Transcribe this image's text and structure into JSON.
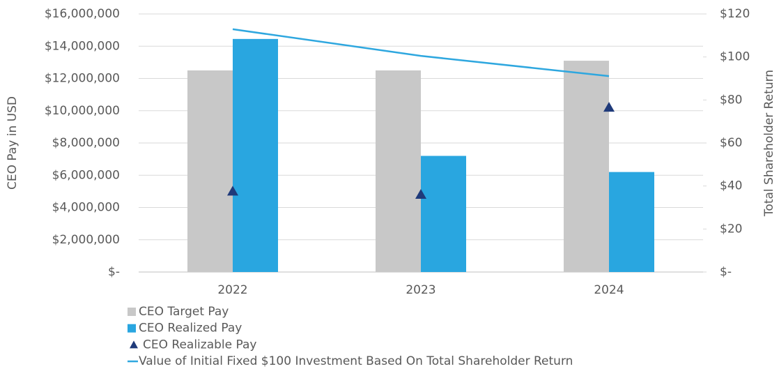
{
  "chart_data": {
    "type": "bar",
    "y_label": "CEO Pay in USD",
    "y2_label": "Total Shareholder Return",
    "categories": [
      "2022",
      "2023",
      "2024"
    ],
    "series": [
      {
        "name": "CEO Target Pay",
        "type": "bar",
        "color": "#c8c8c8",
        "values": [
          12500000,
          12500000,
          13100000
        ]
      },
      {
        "name": "CEO Realized Pay",
        "type": "bar",
        "color": "#29a6e0",
        "values": [
          14450000,
          7200000,
          6200000
        ]
      },
      {
        "name": "CEO Realizable Pay",
        "type": "scatter",
        "color": "#1f3a7a",
        "values": [
          5000000,
          4800000,
          10200000
        ]
      },
      {
        "name": "Value of Initial Fixed $100 Investment Based On Total Shareholder Return",
        "type": "line",
        "color": "#2ea7df",
        "axis": "y2",
        "values": [
          112.9,
          100.5,
          91.1
        ]
      }
    ],
    "ylim": [
      0,
      16000000
    ],
    "yticks": [
      {
        "value": 0,
        "label": "$-"
      },
      {
        "value": 2000000,
        "label": "$2,000,000"
      },
      {
        "value": 4000000,
        "label": "$4,000,000"
      },
      {
        "value": 6000000,
        "label": "$6,000,000"
      },
      {
        "value": 8000000,
        "label": "$8,000,000"
      },
      {
        "value": 10000000,
        "label": "$10,000,000"
      },
      {
        "value": 12000000,
        "label": "$12,000,000"
      },
      {
        "value": 14000000,
        "label": "$14,000,000"
      },
      {
        "value": 16000000,
        "label": "$16,000,000"
      }
    ],
    "y2lim": [
      0,
      120
    ],
    "y2ticks": [
      {
        "value": 0,
        "label": "$-"
      },
      {
        "value": 20,
        "label": "$20"
      },
      {
        "value": 40,
        "label": "$40"
      },
      {
        "value": 60,
        "label": "$60"
      },
      {
        "value": 80,
        "label": "$80"
      },
      {
        "value": 100,
        "label": "$100"
      },
      {
        "value": 120,
        "label": "$120"
      }
    ],
    "grid": true,
    "legend": "bottom"
  }
}
